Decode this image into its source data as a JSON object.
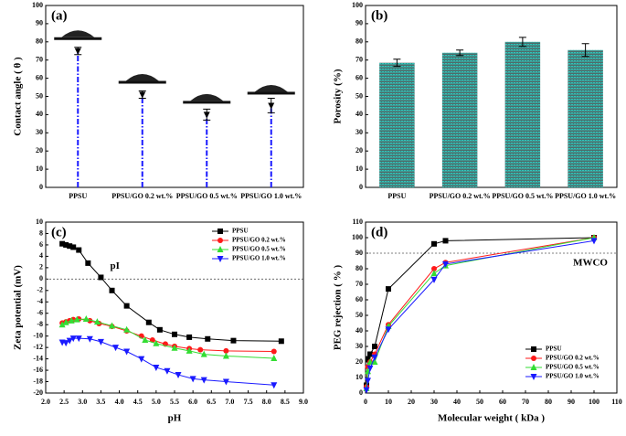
{
  "chart_data": [
    {
      "type": "lollipop",
      "label": "(a)",
      "y_label": "Contact angle ( θ )",
      "categories": [
        "PPSU",
        "PPSU/GO 0.2 wt.%",
        "PPSU/GO 0.5 wt.%",
        "PPSU/GO 1.0 wt.%"
      ],
      "values": [
        75,
        51,
        40,
        45
      ],
      "errors": [
        2,
        2,
        3,
        4
      ],
      "color": "#1a1aff",
      "ylim": [
        0,
        100
      ],
      "yticks": [
        0,
        10,
        20,
        30,
        40,
        50,
        60,
        70,
        80,
        90,
        100
      ]
    },
    {
      "type": "bar",
      "label": "(b)",
      "y_label": "Porosity (%)",
      "categories": [
        "PPSU",
        "PPSU/GO 0.2 wt.%",
        "PPSU/GO 0.5 wt.%",
        "PPSU/GO 1.0 wt.%"
      ],
      "values": [
        68.5,
        74,
        80,
        75.5
      ],
      "errors": [
        2,
        1.5,
        2.5,
        3.5
      ],
      "color": "#2fc9c0",
      "ylim": [
        0,
        100
      ],
      "yticks": [
        0,
        10,
        20,
        30,
        40,
        50,
        60,
        70,
        80,
        90,
        100
      ]
    },
    {
      "type": "line",
      "label": "(c)",
      "x_label": "pH",
      "y_label": "Zeta potential (mV)",
      "xlim": [
        2,
        9
      ],
      "xticks": [
        {
          "value": 2,
          "label": "2.0"
        },
        2.5,
        {
          "value": 3,
          "label": "3.0"
        },
        3.5,
        {
          "value": 4,
          "label": "4.0"
        },
        4.5,
        {
          "value": 5,
          "label": "5.0"
        },
        5.5,
        {
          "value": 6,
          "label": "6.0"
        },
        6.5,
        {
          "value": 7,
          "label": "7.0"
        },
        7.5,
        {
          "value": 8,
          "label": "8.0"
        },
        8.5,
        {
          "value": 9,
          "label": "9.0"
        }
      ],
      "ylim": [
        -20,
        10
      ],
      "yticks": [
        -20,
        -18,
        -16,
        -14,
        -12,
        -10,
        -8,
        -6,
        -4,
        -2,
        0,
        2,
        4,
        6,
        8,
        10
      ],
      "hline": 0,
      "annotation": "pI",
      "legend": "upper right",
      "series": [
        {
          "name": "PPSU",
          "color": "#000000",
          "marker": "square",
          "x": [
            2.45,
            2.55,
            2.65,
            2.75,
            2.9,
            3.15,
            3.5,
            3.8,
            4.2,
            4.8,
            5.1,
            5.5,
            5.9,
            6.4,
            7.1,
            8.4
          ],
          "values": [
            6.2,
            6.0,
            5.8,
            5.6,
            5.1,
            2.8,
            0.3,
            -2.0,
            -4.7,
            -7.6,
            -8.9,
            -9.7,
            -10.2,
            -10.5,
            -10.8,
            -10.9
          ]
        },
        {
          "name": "PPSU/GO 0.2 wt.%",
          "color": "#ff1a1a",
          "marker": "circle",
          "x": [
            2.45,
            2.55,
            2.65,
            2.75,
            2.9,
            3.2,
            3.45,
            3.8,
            4.2,
            4.6,
            4.9,
            5.25,
            5.5,
            5.9,
            6.2,
            6.9,
            8.2
          ],
          "values": [
            -7.7,
            -7.5,
            -7.3,
            -7.1,
            -7.0,
            -7.3,
            -7.8,
            -8.3,
            -9.1,
            -10.0,
            -10.7,
            -11.4,
            -11.8,
            -12.2,
            -12.4,
            -12.6,
            -12.7
          ]
        },
        {
          "name": "PPSU/GO 0.5 wt.%",
          "color": "#33dd33",
          "marker": "triangle-up",
          "x": [
            2.45,
            2.55,
            2.7,
            2.85,
            3.1,
            3.4,
            3.8,
            4.2,
            4.7,
            5.0,
            5.5,
            5.9,
            6.3,
            6.9,
            8.2
          ],
          "values": [
            -8.0,
            -7.6,
            -7.3,
            -7.1,
            -7.0,
            -7.5,
            -8.2,
            -8.9,
            -10.7,
            -11.3,
            -12.1,
            -12.6,
            -13.2,
            -13.5,
            -13.9
          ]
        },
        {
          "name": "PPSU/GO 1.0 wt.%",
          "color": "#1a1aff",
          "marker": "triangle-down",
          "x": [
            2.45,
            2.55,
            2.65,
            2.75,
            2.9,
            3.2,
            3.5,
            3.9,
            4.2,
            4.6,
            5.0,
            5.3,
            5.6,
            6.0,
            6.3,
            6.9,
            8.2
          ],
          "values": [
            -11.1,
            -11.2,
            -10.8,
            -10.4,
            -10.4,
            -10.5,
            -11.0,
            -12.0,
            -12.7,
            -14.0,
            -15.5,
            -16.1,
            -16.8,
            -17.5,
            -17.7,
            -18.0,
            -18.6
          ]
        }
      ]
    },
    {
      "type": "line",
      "label": "(d)",
      "x_label": "Molecular weight ( kDa )",
      "y_label": "PEG rejection ( % )",
      "xlim": [
        0,
        110
      ],
      "xticks": [
        0,
        10,
        20,
        30,
        40,
        50,
        60,
        70,
        80,
        90,
        100,
        110
      ],
      "ylim": [
        0,
        110
      ],
      "yticks": [
        0,
        10,
        20,
        30,
        40,
        50,
        60,
        70,
        80,
        90,
        100,
        110
      ],
      "hline": 90,
      "annotation": "MWCO",
      "legend": "lower right",
      "series": [
        {
          "name": "PPSU",
          "color": "#000000",
          "marker": "square",
          "x": [
            0.4,
            1,
            2,
            4,
            10,
            30,
            35,
            100
          ],
          "values": [
            5,
            22,
            25,
            30,
            67,
            96,
            98,
            100
          ]
        },
        {
          "name": "PPSU/GO 0.2 wt.%",
          "color": "#ff1a1a",
          "marker": "circle",
          "x": [
            0.4,
            1,
            2,
            4,
            10,
            30,
            35,
            100
          ],
          "values": [
            4,
            17,
            20,
            25,
            44,
            80,
            84,
            100
          ]
        },
        {
          "name": "PPSU/GO 0.5 wt.%",
          "color": "#33dd33",
          "marker": "triangle-up",
          "x": [
            0.4,
            1,
            2,
            4,
            10,
            30,
            35,
            100
          ],
          "values": [
            3,
            14,
            20,
            20,
            43,
            77,
            82,
            100
          ]
        },
        {
          "name": "PPSU/GO 1.0 wt.%",
          "color": "#1a1aff",
          "marker": "triangle-down",
          "x": [
            0.4,
            1,
            2,
            4,
            10,
            30,
            35,
            100
          ],
          "values": [
            2,
            8,
            16,
            23,
            41,
            73,
            83,
            98
          ]
        }
      ]
    }
  ]
}
